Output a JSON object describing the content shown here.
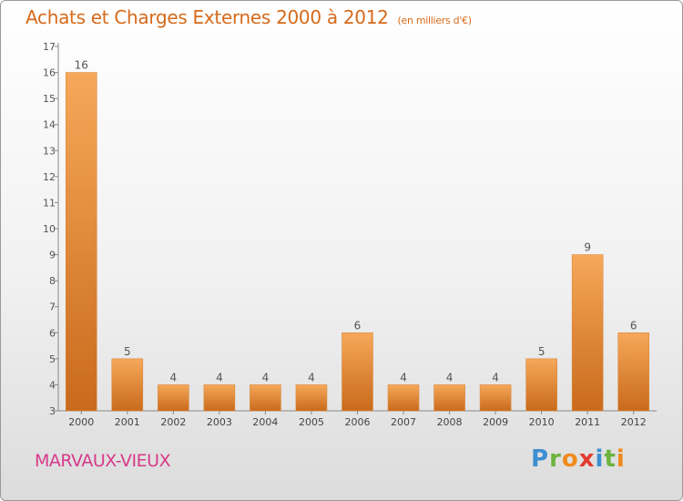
{
  "header": {
    "title": "Achats et Charges Externes 2000 à 2012",
    "subtitle": "(en milliers d'€)"
  },
  "footer": {
    "place": "MARVAUX-VIEUX",
    "logo": "Proxiti"
  },
  "colors": {
    "title": "#d66a1a",
    "place": "#d83a8a",
    "bar_light": "#f6a85a",
    "bar_dark": "#c96a1c"
  },
  "chart_data": {
    "type": "bar",
    "title": "Achats et Charges Externes 2000 à 2012",
    "subtitle": "(en milliers d'€)",
    "categories": [
      "2000",
      "2001",
      "2002",
      "2003",
      "2004",
      "2005",
      "2006",
      "2007",
      "2008",
      "2009",
      "2010",
      "2011",
      "2012"
    ],
    "values": [
      16,
      5,
      4,
      4,
      4,
      4,
      6,
      4,
      4,
      4,
      5,
      9,
      6
    ],
    "ylim": [
      3,
      17
    ],
    "yticks": [
      3,
      4,
      5,
      6,
      7,
      8,
      9,
      10,
      11,
      12,
      13,
      14,
      15,
      16,
      17
    ],
    "grid": false,
    "legend": "none"
  }
}
